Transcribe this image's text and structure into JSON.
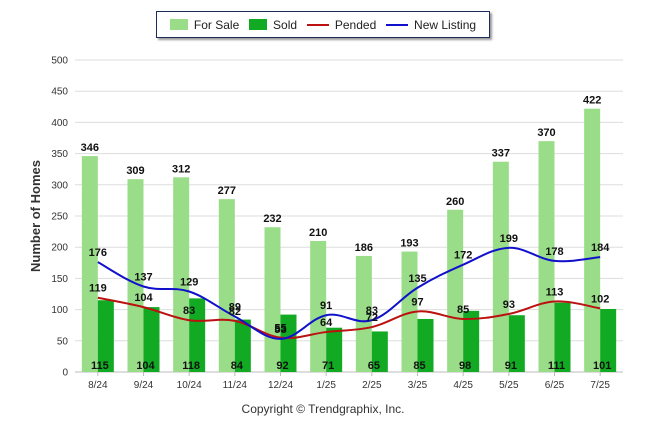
{
  "chart_data": {
    "type": "bar",
    "categories": [
      "8/24",
      "9/24",
      "10/24",
      "11/24",
      "12/24",
      "1/25",
      "2/25",
      "3/25",
      "4/25",
      "5/25",
      "6/25",
      "7/25"
    ],
    "ylabel": "Number of Homes",
    "ylim": [
      0,
      500
    ],
    "yticks": [
      0,
      50,
      100,
      150,
      200,
      250,
      300,
      350,
      400,
      450,
      500
    ],
    "grid": true,
    "legend_position": "top-center",
    "series": [
      {
        "name": "For Sale",
        "kind": "bar",
        "color": "#99dd88",
        "values": [
          346,
          309,
          312,
          277,
          232,
          210,
          186,
          193,
          260,
          337,
          370,
          422
        ]
      },
      {
        "name": "Sold",
        "kind": "bar",
        "color": "#11aa22",
        "values": [
          115,
          104,
          118,
          84,
          92,
          71,
          65,
          85,
          98,
          91,
          111,
          101
        ]
      },
      {
        "name": "Pended",
        "kind": "line",
        "color": "#bb1111",
        "values": [
          119,
          104,
          83,
          82,
          55,
          64,
          72,
          97,
          85,
          93,
          113,
          102
        ]
      },
      {
        "name": "New Listing",
        "kind": "line",
        "color": "#1111cc",
        "values": [
          176,
          137,
          129,
          89,
          53,
          91,
          83,
          135,
          172,
          199,
          178,
          184
        ]
      }
    ]
  },
  "copyright": "Copyright © Trendgraphix, Inc."
}
